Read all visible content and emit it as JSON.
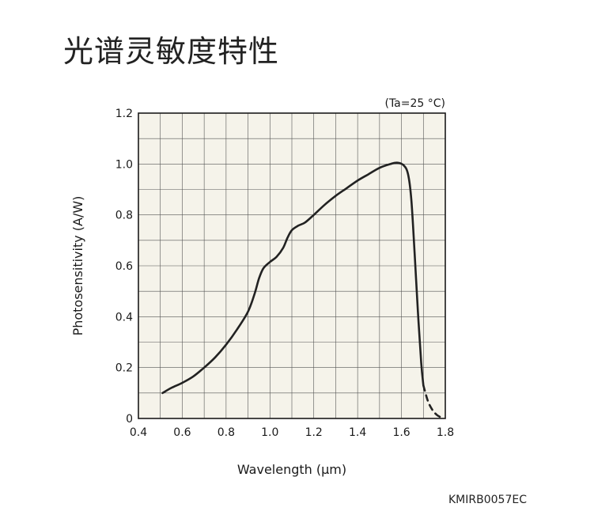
{
  "title": "光谱灵敏度特性",
  "figure_code": "KMIRB0057EC",
  "chart_data": {
    "type": "line",
    "title": "",
    "condition_note": "(Ta=25 °C)",
    "xlabel": "Wavelength (μm)",
    "ylabel": "Photosensitivity (A/W)",
    "xlim": [
      0.4,
      1.8
    ],
    "ylim": [
      0,
      1.2
    ],
    "x_ticks": [
      "0.4",
      "0.6",
      "0.8",
      "1.0",
      "1.2",
      "1.4",
      "1.6",
      "1.8"
    ],
    "y_ticks": [
      "0",
      "0.2",
      "0.4",
      "0.6",
      "0.8",
      "1.0",
      "1.2"
    ],
    "grid": true,
    "plot_background": "#f5f3ea",
    "line_color": "#222222",
    "series": [
      {
        "style": "solid",
        "points": [
          [
            0.51,
            0.1
          ],
          [
            0.55,
            0.12
          ],
          [
            0.6,
            0.14
          ],
          [
            0.65,
            0.165
          ],
          [
            0.7,
            0.2
          ],
          [
            0.75,
            0.24
          ],
          [
            0.8,
            0.29
          ],
          [
            0.85,
            0.35
          ],
          [
            0.9,
            0.42
          ],
          [
            0.93,
            0.49
          ],
          [
            0.95,
            0.55
          ],
          [
            0.97,
            0.59
          ],
          [
            1.0,
            0.615
          ],
          [
            1.03,
            0.635
          ],
          [
            1.06,
            0.67
          ],
          [
            1.08,
            0.71
          ],
          [
            1.1,
            0.74
          ],
          [
            1.13,
            0.758
          ],
          [
            1.16,
            0.77
          ],
          [
            1.2,
            0.8
          ],
          [
            1.25,
            0.84
          ],
          [
            1.3,
            0.875
          ],
          [
            1.35,
            0.905
          ],
          [
            1.4,
            0.935
          ],
          [
            1.45,
            0.96
          ],
          [
            1.5,
            0.985
          ],
          [
            1.55,
            1.0
          ],
          [
            1.58,
            1.005
          ],
          [
            1.61,
            0.995
          ],
          [
            1.63,
            0.96
          ],
          [
            1.645,
            0.86
          ],
          [
            1.66,
            0.65
          ],
          [
            1.675,
            0.42
          ],
          [
            1.69,
            0.22
          ],
          [
            1.7,
            0.13
          ]
        ]
      },
      {
        "style": "dashed",
        "points": [
          [
            1.7,
            0.13
          ],
          [
            1.72,
            0.07
          ],
          [
            1.74,
            0.035
          ],
          [
            1.76,
            0.015
          ],
          [
            1.78,
            0.004
          ],
          [
            1.79,
            0.0
          ]
        ]
      }
    ]
  }
}
